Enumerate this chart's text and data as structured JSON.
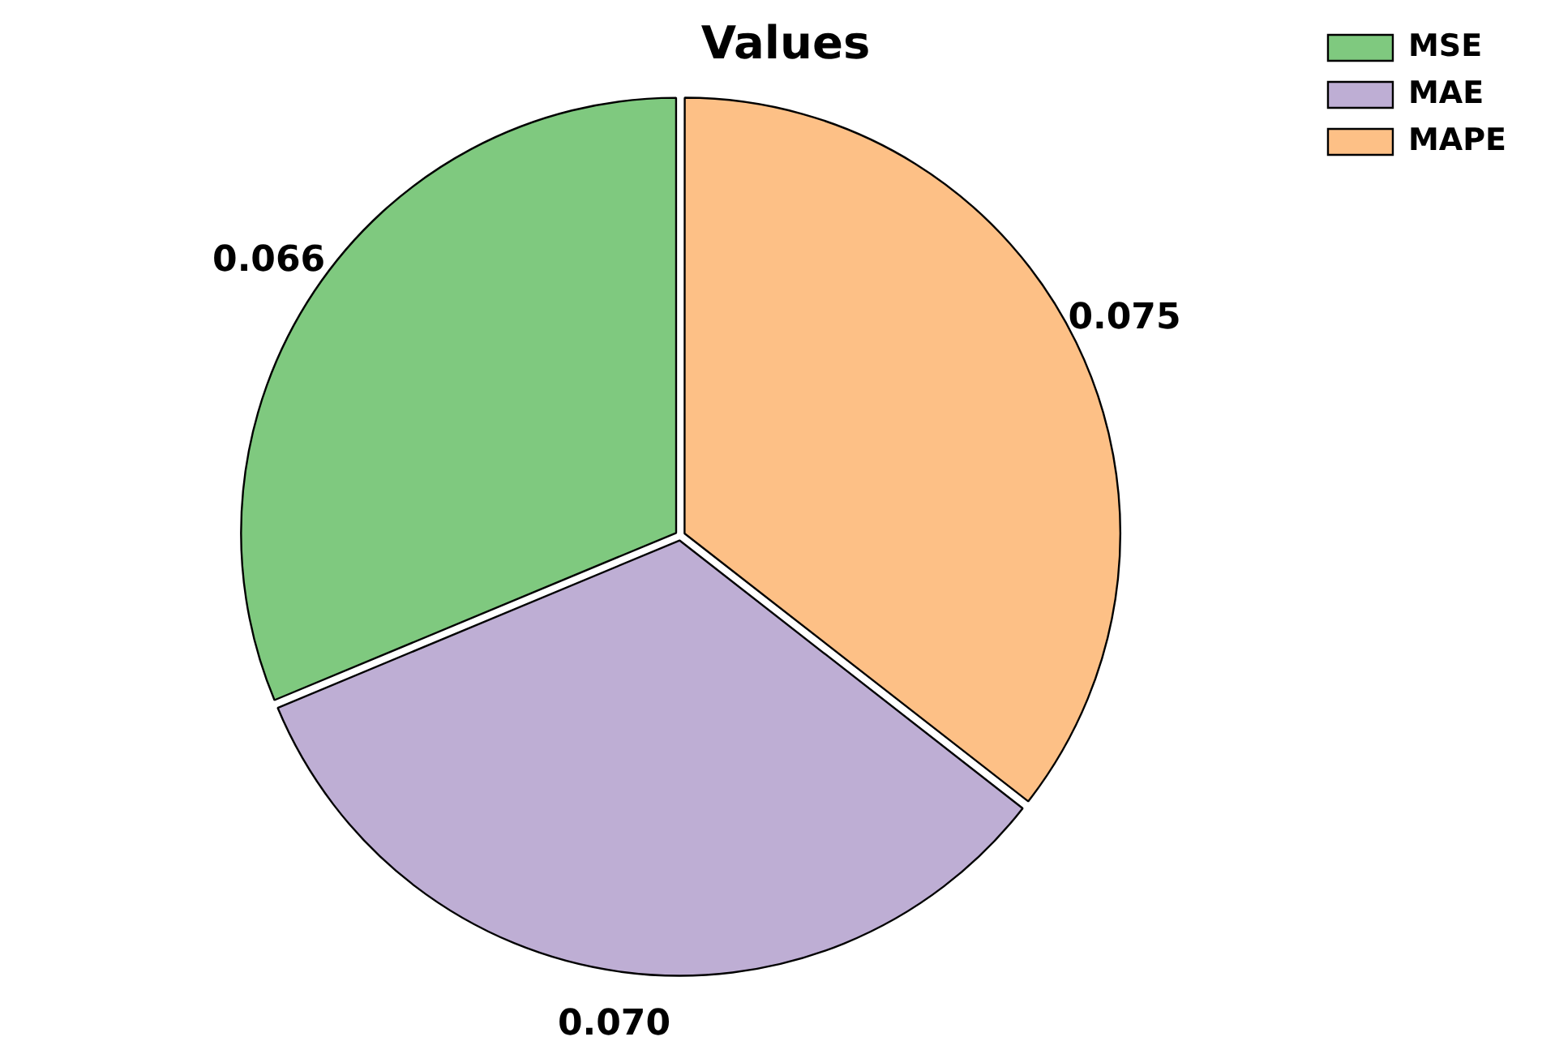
{
  "chart_data": {
    "type": "pie",
    "title": "Values",
    "categories": [
      "MSE",
      "MAE",
      "MAPE"
    ],
    "values": [
      0.066,
      0.07,
      0.075
    ],
    "colors": [
      "#7fc97f",
      "#beaed4",
      "#fdc086"
    ],
    "value_labels": [
      "0.066",
      "0.070",
      "0.075"
    ],
    "legend": "top right"
  }
}
